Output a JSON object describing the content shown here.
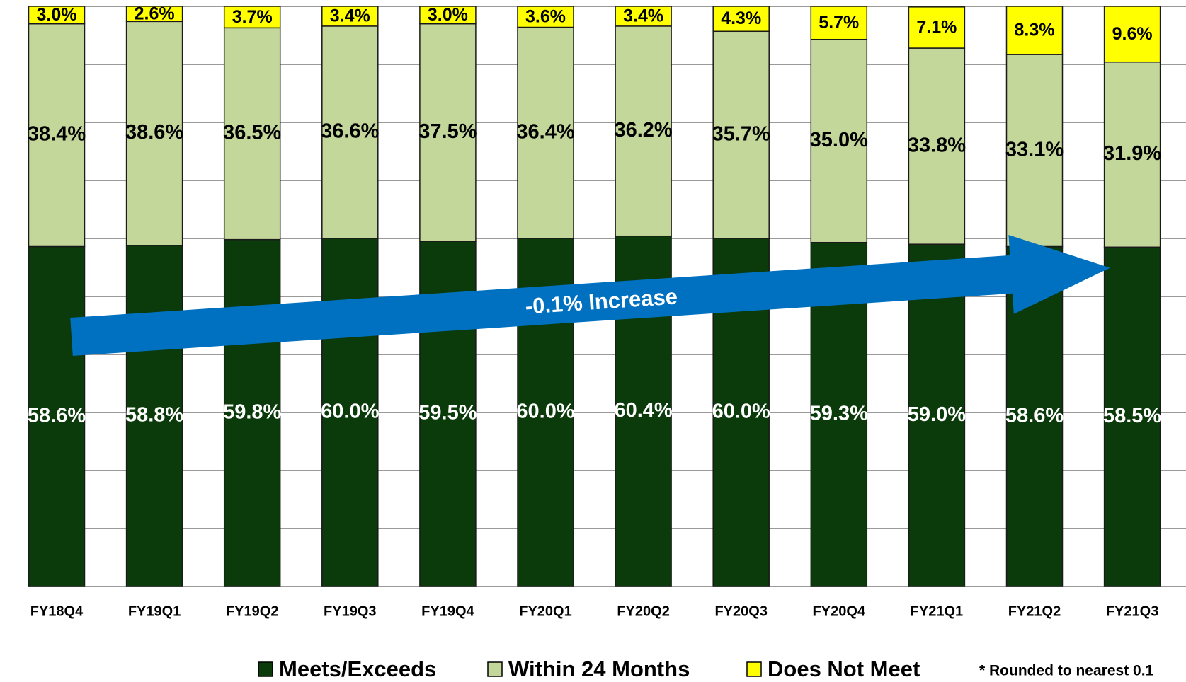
{
  "chart_data": {
    "type": "stacked_bar",
    "categories": [
      "FY18Q4",
      "FY19Q1",
      "FY19Q2",
      "FY19Q3",
      "FY19Q4",
      "FY20Q1",
      "FY20Q2",
      "FY20Q3",
      "FY20Q4",
      "FY21Q1",
      "FY21Q2",
      "FY21Q3"
    ],
    "series": [
      {
        "name": "Meets/Exceeds",
        "color": "#0b3a0b",
        "label_color": "#ffffff",
        "values": [
          58.6,
          58.8,
          59.8,
          60.0,
          59.5,
          60.0,
          60.4,
          60.0,
          59.3,
          59.0,
          58.6,
          58.5
        ],
        "value_labels": [
          "58.6%",
          "58.8%",
          "59.8%",
          "60.0%",
          "59.5%",
          "60.0%",
          "60.4%",
          "60.0%",
          "59.3%",
          "59.0%",
          "58.6%",
          "58.5%"
        ]
      },
      {
        "name": "Within 24 Months",
        "color": "#c4d79b",
        "label_color": "#000000",
        "values": [
          38.4,
          38.6,
          36.5,
          36.6,
          37.5,
          36.4,
          36.2,
          35.7,
          35.0,
          33.8,
          33.1,
          31.9
        ],
        "value_labels": [
          "38.4%",
          "38.6%",
          "36.5%",
          "36.6%",
          "37.5%",
          "36.4%",
          "36.2%",
          "35.7%",
          "35.0%",
          "33.8%",
          "33.1%",
          "31.9%"
        ]
      },
      {
        "name": "Does Not Meet",
        "color": "#ffff00",
        "label_color": "#000000",
        "values": [
          3.0,
          2.6,
          3.7,
          3.4,
          3.0,
          3.6,
          3.4,
          4.3,
          5.7,
          7.1,
          8.3,
          9.6
        ],
        "value_labels": [
          "3.0%",
          "2.6%",
          "3.7%",
          "3.4%",
          "3.0%",
          "3.6%",
          "3.4%",
          "4.3%",
          "5.7%",
          "7.1%",
          "8.3%",
          "9.6%"
        ]
      }
    ],
    "ylim": [
      0,
      100
    ],
    "yticks": [
      0,
      10,
      20,
      30,
      40,
      50,
      60,
      70,
      80,
      90,
      100
    ],
    "grid": true,
    "annotation": "-0.1% Increase",
    "footnote": "* Rounded to nearest  0.1"
  }
}
